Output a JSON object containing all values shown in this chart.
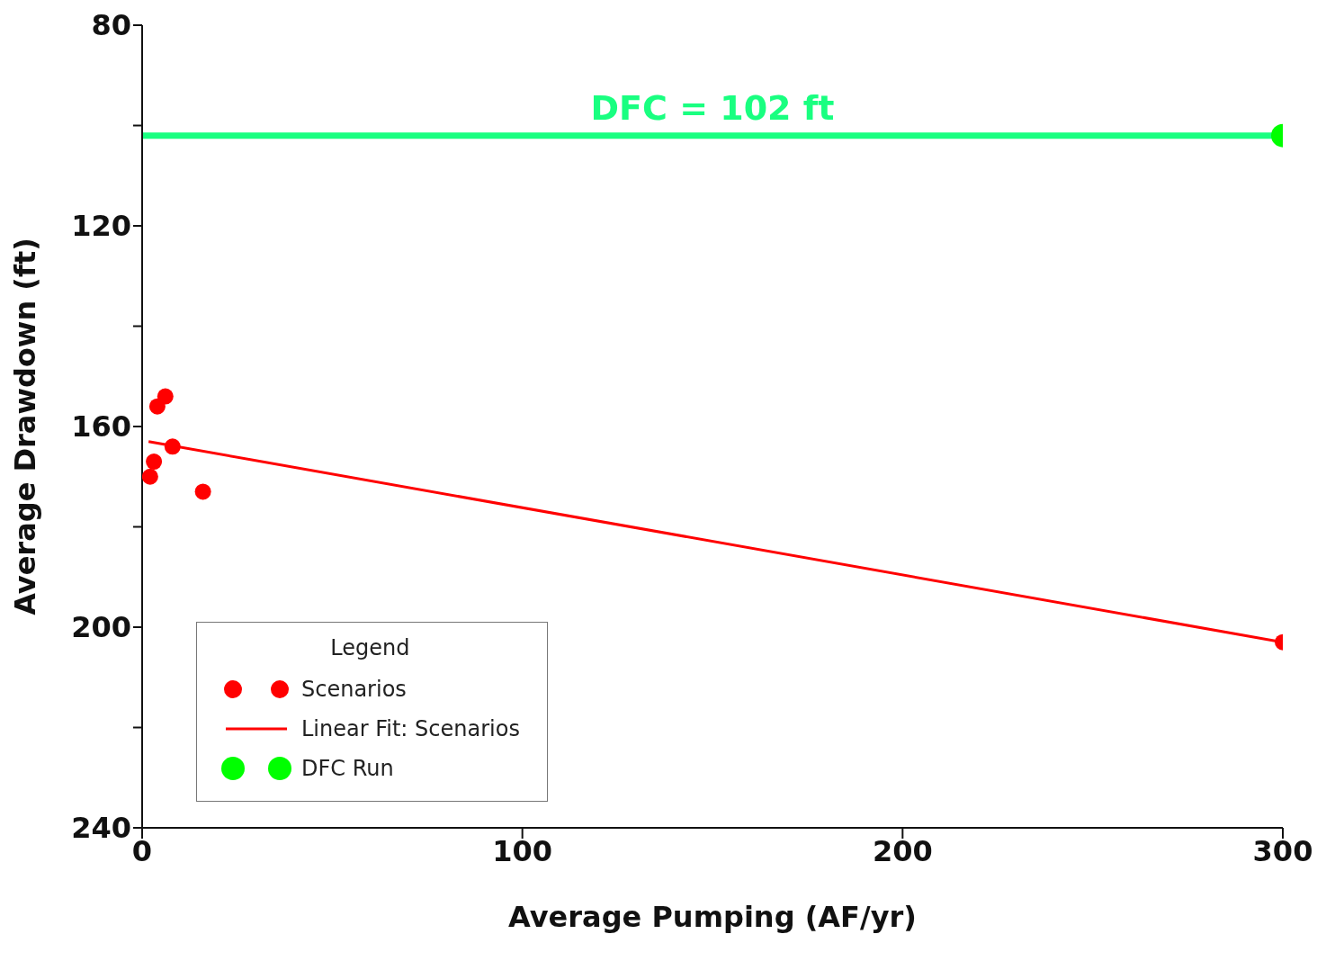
{
  "chart_data": {
    "type": "scatter",
    "xlabel": "Average Pumping (AF/yr)",
    "ylabel": "Average Drawdown (ft)",
    "legend_title": "Legend",
    "xlim": [
      0,
      300
    ],
    "xticks": [
      0,
      100,
      200,
      300
    ],
    "ylim": [
      240,
      80
    ],
    "yticks": [
      80,
      {
        "value": 100,
        "label": null
      },
      120,
      {
        "value": 140,
        "label": null
      },
      160,
      {
        "value": 180,
        "label": null
      },
      200,
      {
        "value": 220,
        "label": null
      },
      240
    ],
    "legend": "bottom left",
    "marker": "circle",
    "series": [
      {
        "name": "Scenarios",
        "color": "#ff0000",
        "x": [
          2.1,
          3.1,
          4.0,
          6.1,
          8.0,
          16.0,
          300
        ],
        "values": [
          170,
          167,
          156,
          154,
          164,
          173,
          203
        ]
      },
      {
        "name": "Linear Fit: Scenarios",
        "type": "line",
        "color": "#ff0000",
        "marker": "none",
        "x": [
          1.7,
          300
        ],
        "values": [
          163,
          203
        ]
      },
      {
        "name": "DFC Run",
        "color": "#00ff00",
        "x": [
          300
        ],
        "values": [
          102
        ]
      }
    ],
    "ref_lines": [
      {
        "axis": "y",
        "value": 102,
        "label": "DFC = 102 ft",
        "color": "#19ff80"
      }
    ]
  }
}
